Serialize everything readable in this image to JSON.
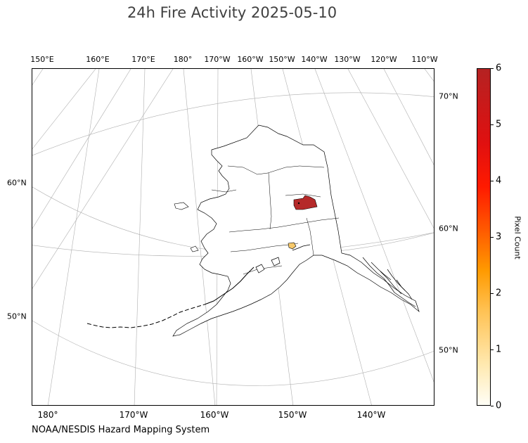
{
  "title": "24h Fire Activity 2025-05-10",
  "source": "NOAA/NESDIS Hazard Mapping System",
  "map": {
    "region": "Alaska",
    "projection": "polar stereographic",
    "graticule_color": "#b0b0b0",
    "coast_color": "#000000",
    "fire_zones": [
      {
        "name": "interior-fire-zone",
        "pixel_count": 6,
        "color": "#b52a2a"
      },
      {
        "name": "southcentral-fire-zone",
        "pixel_count": 1,
        "color": "#f7c96b"
      }
    ]
  },
  "lon_labels_top": [
    "150°E",
    "160°E",
    "170°E",
    "180°",
    "170°W",
    "160°W",
    "150°W",
    "140°W",
    "130°W",
    "120°W",
    "110°W"
  ],
  "lon_labels_bottom": [
    "180°",
    "170°W",
    "160°W",
    "150°W",
    "140°W"
  ],
  "lat_labels_left": [
    "60°N",
    "50°N"
  ],
  "lat_labels_right": [
    "70°N",
    "60°N",
    "50°N"
  ],
  "colorbar": {
    "label": "Pixel Count",
    "min": 0,
    "max": 6,
    "ticks": [
      "0",
      "1",
      "2",
      "3",
      "4",
      "5",
      "6"
    ],
    "colors": [
      "#fffef6",
      "#ffc254",
      "#ff9a00",
      "#ff1a00",
      "#b52222"
    ]
  }
}
